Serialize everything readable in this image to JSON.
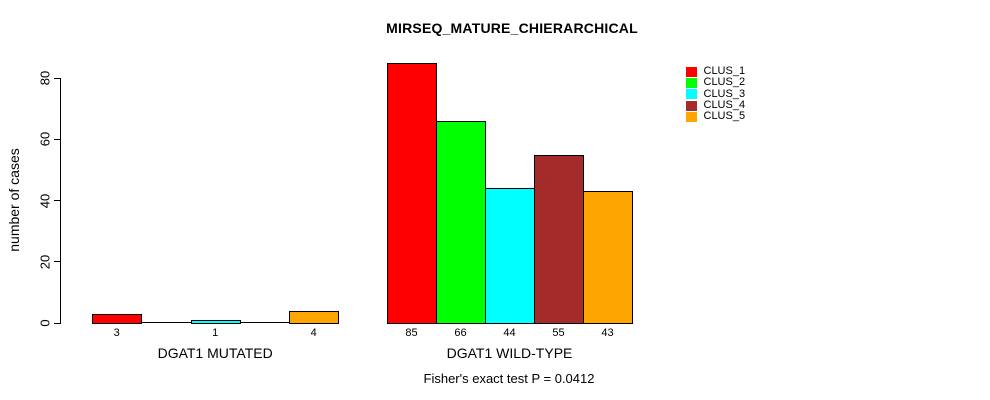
{
  "figure": {
    "background_color": "#FFFFFF",
    "text_color": "#000000",
    "axis_color": "#000000",
    "bar_border_color": "#000000"
  },
  "chart_data": {
    "type": "bar",
    "title": "MIRSEQ_MATURE_CHIERARCHICAL",
    "ylabel": "number of cases",
    "xlabel": "",
    "caption": "Fisher's exact test P = 0.0412",
    "categories": [
      "DGAT1 MUTATED",
      "DGAT1 WILD-TYPE"
    ],
    "series": [
      {
        "name": "CLUS_1",
        "color": "#FF0000",
        "values": [
          3,
          85
        ]
      },
      {
        "name": "CLUS_2",
        "color": "#00FF00",
        "values": [
          0,
          66
        ]
      },
      {
        "name": "CLUS_3",
        "color": "#00FFFF",
        "values": [
          1,
          44
        ]
      },
      {
        "name": "CLUS_4",
        "color": "#A52A2A",
        "values": [
          0,
          55
        ]
      },
      {
        "name": "CLUS_5",
        "color": "#FFA500",
        "values": [
          4,
          43
        ]
      }
    ],
    "bar_value_labels": [
      [
        "3",
        "",
        "1",
        "",
        "4"
      ],
      [
        "85",
        "66",
        "44",
        "55",
        "43"
      ]
    ],
    "yticks": [
      0,
      20,
      40,
      60,
      80
    ],
    "ylim": [
      0,
      80
    ],
    "grid": false,
    "legend": {
      "position": "top-right-inside",
      "entries": [
        "CLUS_1",
        "CLUS_2",
        "CLUS_3",
        "CLUS_4",
        "CLUS_5"
      ]
    }
  }
}
